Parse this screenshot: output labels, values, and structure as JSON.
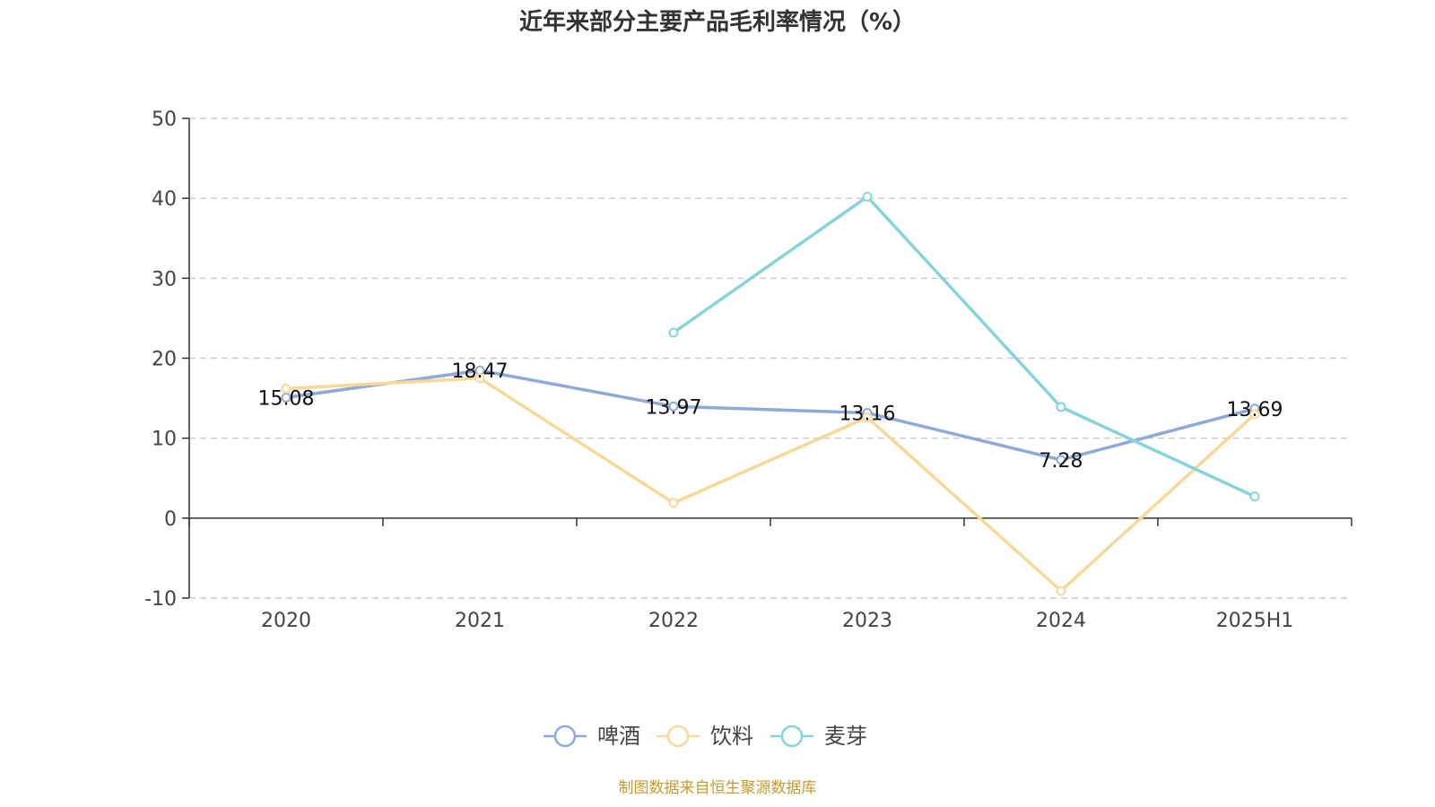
{
  "chart_data": {
    "type": "line",
    "title": "近年来部分主要产品毛利率情况（%）",
    "source": "制图数据来自恒生聚源数据库",
    "categories": [
      "2020",
      "2021",
      "2022",
      "2023",
      "2024",
      "2025H1"
    ],
    "ylim": [
      -10,
      50
    ],
    "yticks": [
      "50",
      "40",
      "30",
      "20",
      "10",
      "0",
      "-10"
    ],
    "grid": true,
    "legend_position": "bottom",
    "series": [
      {
        "name": "啤酒",
        "color": "#8eaad8",
        "values": [
          15.08,
          18.47,
          13.97,
          13.16,
          7.28,
          13.69
        ],
        "labels": [
          "15.08",
          "18.47",
          "13.97",
          "13.16",
          "7.28",
          "13.69"
        ]
      },
      {
        "name": "饮料",
        "color": "#f8d898",
        "values": [
          16.2,
          17.5,
          1.9,
          12.6,
          -9.1,
          13.0
        ],
        "labels": []
      },
      {
        "name": "麦芽",
        "color": "#86d4d8",
        "values": [
          null,
          null,
          23.2,
          40.2,
          13.9,
          2.7
        ],
        "labels": []
      }
    ]
  }
}
